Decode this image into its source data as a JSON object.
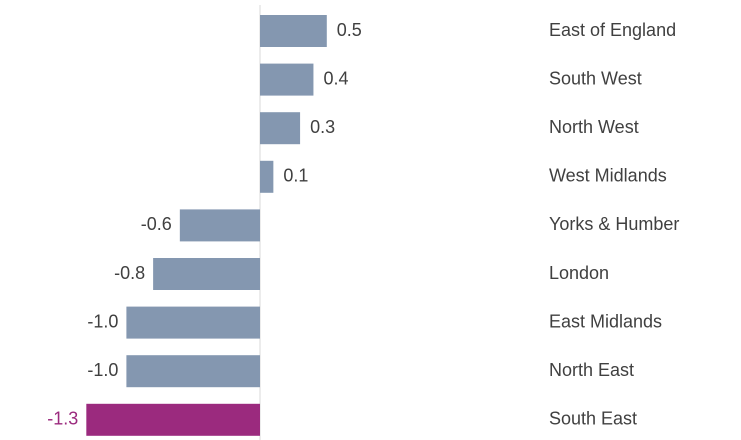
{
  "chart_data": {
    "type": "bar",
    "orientation": "horizontal",
    "categories": [
      "East of England",
      "South West",
      "North West",
      "West Midlands",
      "Yorks & Humber",
      "London",
      "East Midlands",
      "North East",
      "South East"
    ],
    "values": [
      0.5,
      0.4,
      0.3,
      0.1,
      -0.6,
      -0.8,
      -1,
      -1,
      -1.3
    ],
    "value_labels": [
      "0.5",
      "0.4",
      "0.3",
      "0.1",
      "-0.6",
      "-0.8",
      "-1.0",
      "-1.0",
      "-1.3"
    ],
    "colors": [
      "#8497b0",
      "#8497b0",
      "#8497b0",
      "#8497b0",
      "#8497b0",
      "#8497b0",
      "#8497b0",
      "#8497b0",
      "#9b2a7e"
    ]
  }
}
